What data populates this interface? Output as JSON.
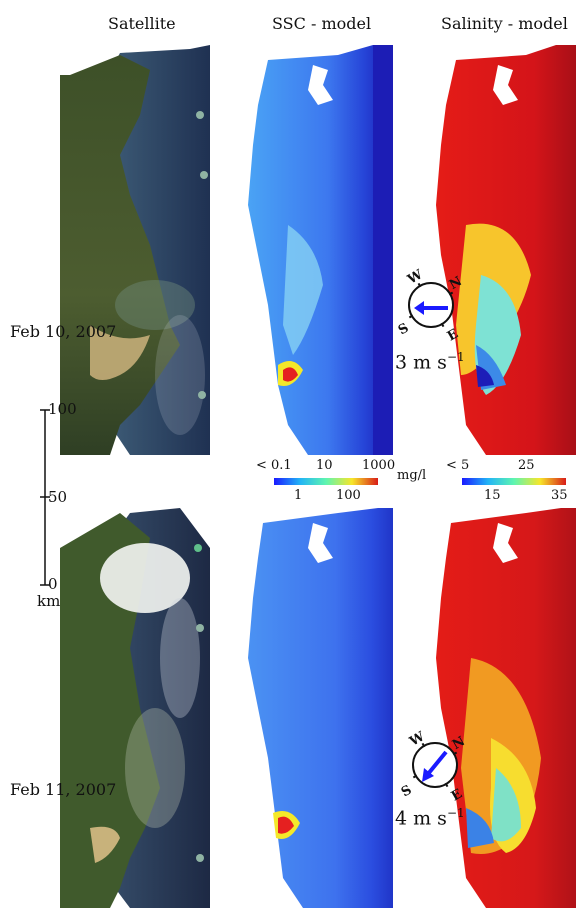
{
  "columns": [
    {
      "title": "Satellite"
    },
    {
      "title": "SSC - model"
    },
    {
      "title": "Salinity - model"
    }
  ],
  "rows": [
    {
      "date": "Feb 10, 2007",
      "wind": {
        "speed_text": "3 m s",
        "speed_unit_sup": "−1",
        "speed_value": 3,
        "direction": "from east (arrow points west)"
      }
    },
    {
      "date": "Feb 11, 2007",
      "wind": {
        "speed_text": "4 m s",
        "speed_unit_sup": "−1",
        "speed_value": 4,
        "direction": "toward south-west"
      }
    }
  ],
  "compass": {
    "n": "N",
    "e": "E",
    "s": "S",
    "w": "W"
  },
  "scale_bar": {
    "top": "100",
    "mid": "50",
    "bottom": "0",
    "unit": "km"
  },
  "colorbars": {
    "ssc": {
      "ticks_top": [
        "< 0.1",
        "10",
        "1000"
      ],
      "ticks_bottom": [
        "1",
        "100"
      ],
      "unit": "mg/l"
    },
    "salinity": {
      "ticks_top": [
        "< 5",
        "25"
      ],
      "ticks_bottom": [
        "15",
        "35"
      ]
    }
  },
  "colors": {
    "arrow": "#1a1aff",
    "ocean_model_blue": "#1c1fb8",
    "salinity_red": "#c8101a"
  }
}
